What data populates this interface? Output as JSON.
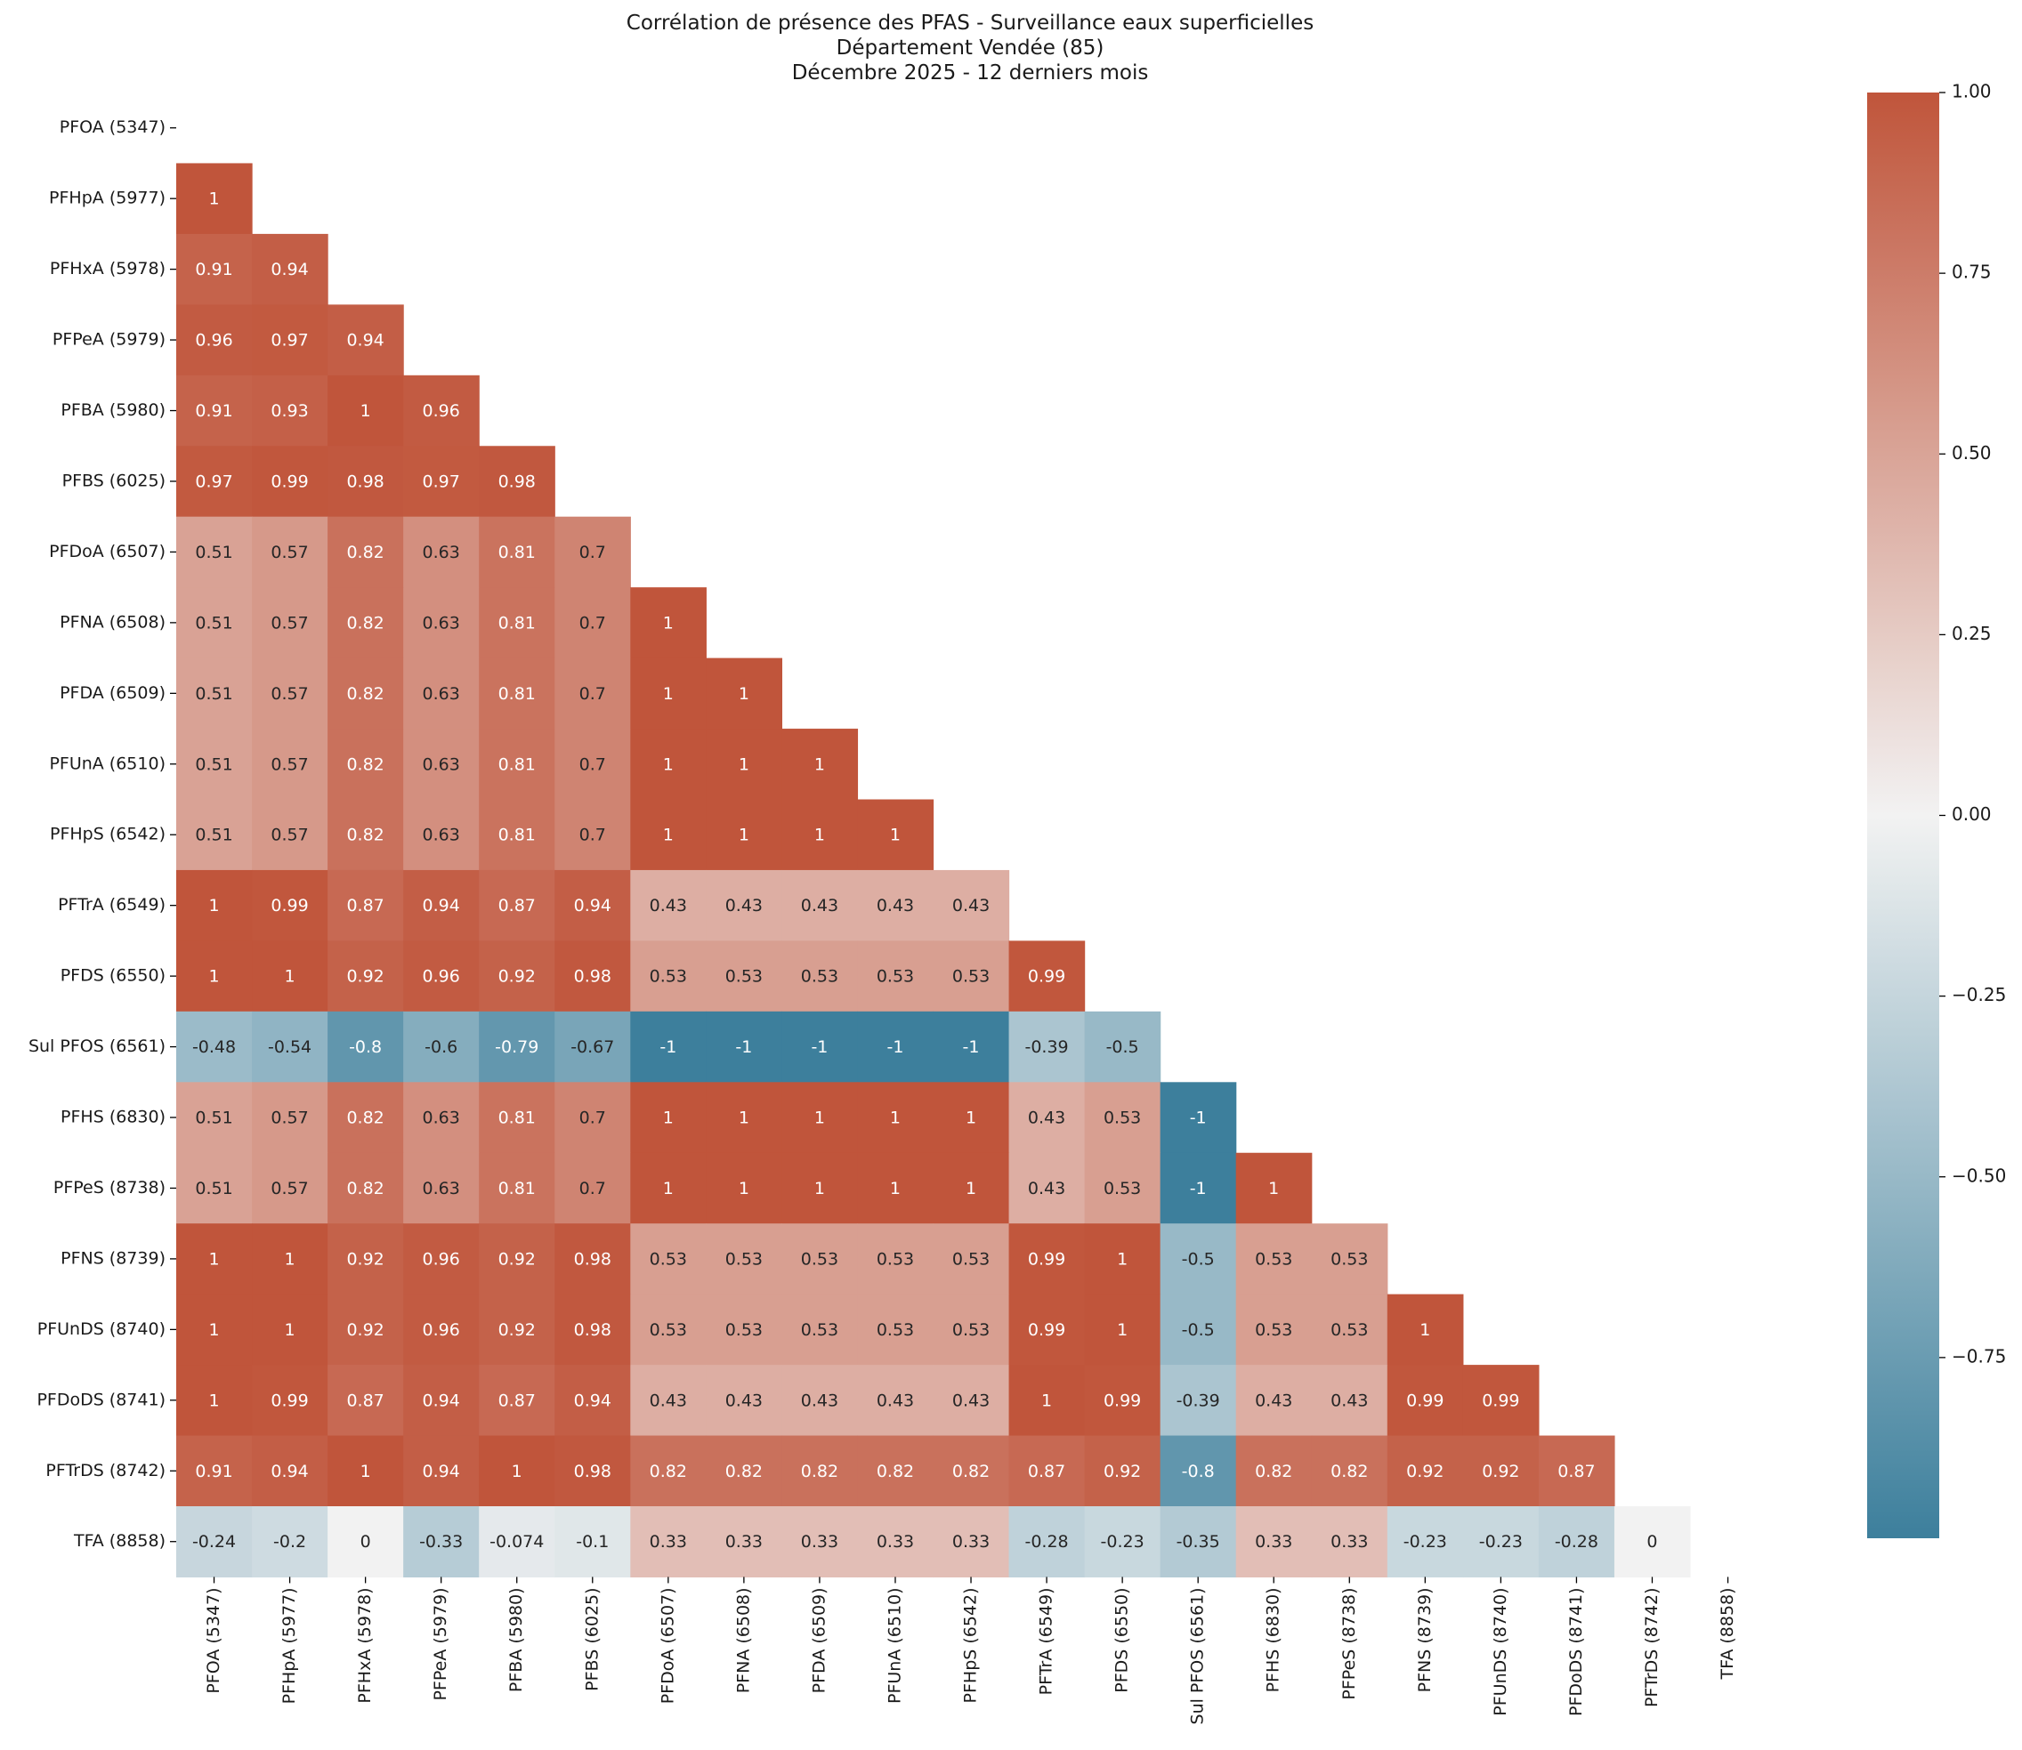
{
  "title_lines": [
    "Corrélation de présence des PFAS - Surveillance eaux superficielles",
    "Département Vendée (85)",
    "Décembre 2025 - 12 derniers mois"
  ],
  "chart_data": {
    "type": "heatmap",
    "mask": "upper-triangle-including-diagonal",
    "labels": [
      "PFOA (5347)",
      "PFHpA (5977)",
      "PFHxA (5978)",
      "PFPeA (5979)",
      "PFBA (5980)",
      "PFBS (6025)",
      "PFDoA (6507)",
      "PFNA (6508)",
      "PFDA (6509)",
      "PFUnA (6510)",
      "PFHpS (6542)",
      "PFTrA (6549)",
      "PFDS (6550)",
      "Sul PFOS (6561)",
      "PFHS (6830)",
      "PFPeS (8738)",
      "PFNS (8739)",
      "PFUnDS (8740)",
      "PFDoDS (8741)",
      "PFTrDS (8742)",
      "TFA (8858)"
    ],
    "rows": [
      [],
      [
        "1"
      ],
      [
        "0.91",
        "0.94"
      ],
      [
        "0.96",
        "0.97",
        "0.94"
      ],
      [
        "0.91",
        "0.93",
        "1",
        "0.96"
      ],
      [
        "0.97",
        "0.99",
        "0.98",
        "0.97",
        "0.98"
      ],
      [
        "0.51",
        "0.57",
        "0.82",
        "0.63",
        "0.81",
        "0.7"
      ],
      [
        "0.51",
        "0.57",
        "0.82",
        "0.63",
        "0.81",
        "0.7",
        "1"
      ],
      [
        "0.51",
        "0.57",
        "0.82",
        "0.63",
        "0.81",
        "0.7",
        "1",
        "1"
      ],
      [
        "0.51",
        "0.57",
        "0.82",
        "0.63",
        "0.81",
        "0.7",
        "1",
        "1",
        "1"
      ],
      [
        "0.51",
        "0.57",
        "0.82",
        "0.63",
        "0.81",
        "0.7",
        "1",
        "1",
        "1",
        "1"
      ],
      [
        "1",
        "0.99",
        "0.87",
        "0.94",
        "0.87",
        "0.94",
        "0.43",
        "0.43",
        "0.43",
        "0.43",
        "0.43"
      ],
      [
        "1",
        "1",
        "0.92",
        "0.96",
        "0.92",
        "0.98",
        "0.53",
        "0.53",
        "0.53",
        "0.53",
        "0.53",
        "0.99"
      ],
      [
        "-0.48",
        "-0.54",
        "-0.8",
        "-0.6",
        "-0.79",
        "-0.67",
        "-1",
        "-1",
        "-1",
        "-1",
        "-1",
        "-0.39",
        "-0.5"
      ],
      [
        "0.51",
        "0.57",
        "0.82",
        "0.63",
        "0.81",
        "0.7",
        "1",
        "1",
        "1",
        "1",
        "1",
        "0.43",
        "0.53",
        "-1"
      ],
      [
        "0.51",
        "0.57",
        "0.82",
        "0.63",
        "0.81",
        "0.7",
        "1",
        "1",
        "1",
        "1",
        "1",
        "0.43",
        "0.53",
        "-1",
        "1"
      ],
      [
        "1",
        "1",
        "0.92",
        "0.96",
        "0.92",
        "0.98",
        "0.53",
        "0.53",
        "0.53",
        "0.53",
        "0.53",
        "0.99",
        "1",
        "-0.5",
        "0.53",
        "0.53"
      ],
      [
        "1",
        "1",
        "0.92",
        "0.96",
        "0.92",
        "0.98",
        "0.53",
        "0.53",
        "0.53",
        "0.53",
        "0.53",
        "0.99",
        "1",
        "-0.5",
        "0.53",
        "0.53",
        "1"
      ],
      [
        "1",
        "0.99",
        "0.87",
        "0.94",
        "0.87",
        "0.94",
        "0.43",
        "0.43",
        "0.43",
        "0.43",
        "0.43",
        "1",
        "0.99",
        "-0.39",
        "0.43",
        "0.43",
        "0.99",
        "0.99"
      ],
      [
        "0.91",
        "0.94",
        "1",
        "0.94",
        "1",
        "0.98",
        "0.82",
        "0.82",
        "0.82",
        "0.82",
        "0.82",
        "0.87",
        "0.92",
        "-0.8",
        "0.82",
        "0.82",
        "0.92",
        "0.92",
        "0.87"
      ],
      [
        "-0.24",
        "-0.2",
        "0",
        "-0.33",
        "-0.074",
        "-0.1",
        "0.33",
        "0.33",
        "0.33",
        "0.33",
        "0.33",
        "-0.28",
        "-0.23",
        "-0.35",
        "0.33",
        "0.33",
        "-0.23",
        "-0.23",
        "-0.28",
        "0"
      ]
    ],
    "colorbar": {
      "min": -1,
      "max": 1,
      "ticks": [
        "1.00",
        "0.75",
        "0.50",
        "0.25",
        "0.00",
        "−0.25",
        "−0.50",
        "−0.75"
      ],
      "tick_values": [
        1.0,
        0.75,
        0.5,
        0.25,
        0.0,
        -0.25,
        -0.5,
        -0.75
      ],
      "color_negative": "#3d7f9c",
      "color_zero": "#f2f2f2",
      "color_positive": "#c0553b"
    }
  }
}
